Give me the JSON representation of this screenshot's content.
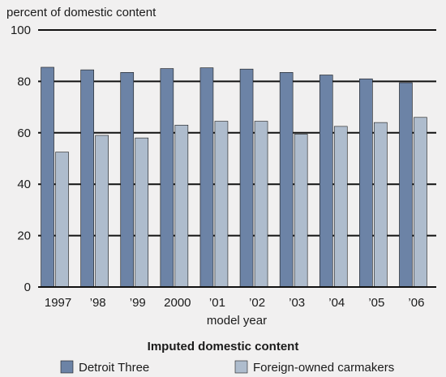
{
  "chart_data": {
    "type": "bar",
    "ylabel": "percent of domestic content",
    "xlabel": "model year",
    "ylim": [
      0,
      100
    ],
    "yticks": [
      0,
      20,
      40,
      60,
      80,
      100
    ],
    "categories": [
      "1997",
      "’98",
      "’99",
      "2000",
      "’01",
      "’02",
      "’03",
      "’04",
      "’05",
      "’06"
    ],
    "series": [
      {
        "name": "Detroit Three",
        "color": "#6c83a6",
        "values": [
          85.5,
          84.5,
          83.5,
          85,
          85.3,
          84.8,
          83.5,
          82.5,
          81,
          79.5
        ]
      },
      {
        "name": "Foreign-owned carmakers",
        "color": "#aebccd",
        "values": [
          52.5,
          59,
          58,
          63,
          64.5,
          64.5,
          59.5,
          62.5,
          64,
          66
        ]
      }
    ],
    "grid": true,
    "legend": {
      "title": "Imputed domestic content",
      "position": "bottom"
    }
  }
}
